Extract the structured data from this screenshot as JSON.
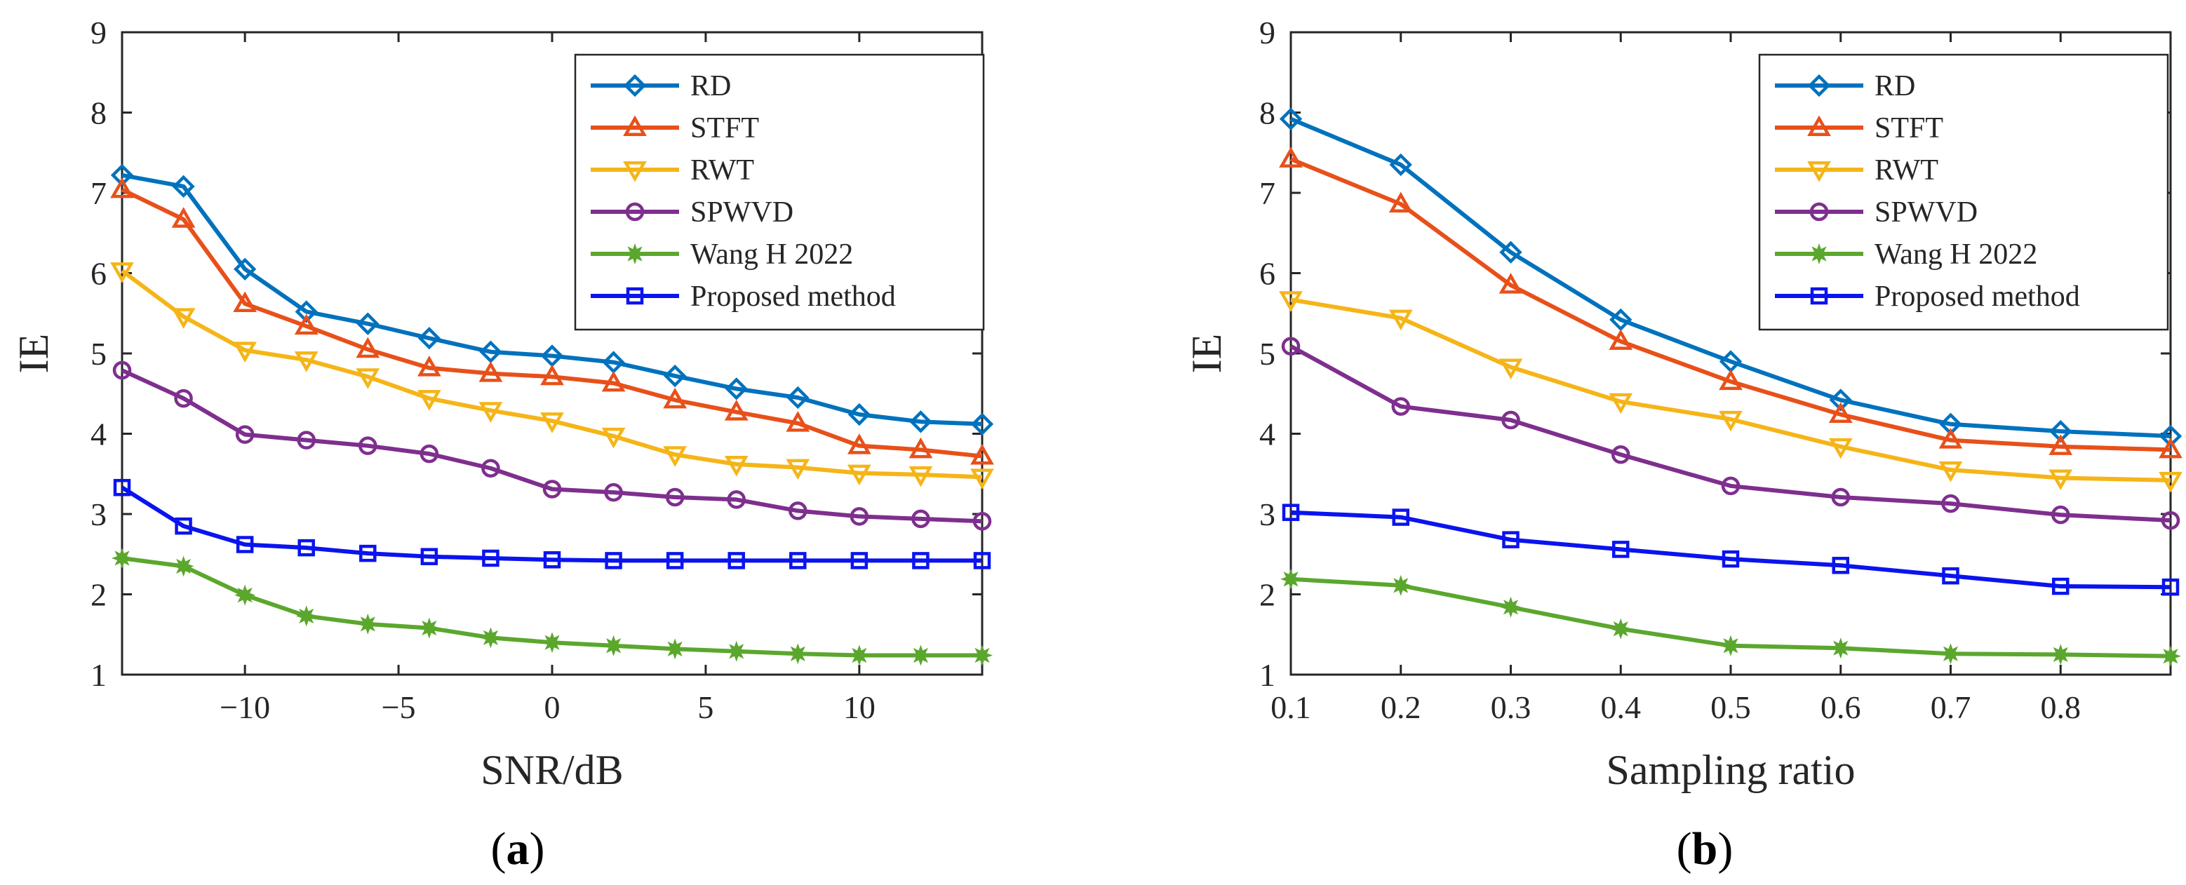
{
  "chart_data": [
    {
      "type": "line",
      "panel_label": "a",
      "xlabel": "SNR/dB",
      "ylabel": "IE",
      "xlim": [
        -14,
        14
      ],
      "ylim": [
        1,
        9
      ],
      "xticks": [
        -10,
        -5,
        0,
        5,
        10
      ],
      "xtick_labels": [
        "−10",
        "−5",
        "0",
        "5",
        "10"
      ],
      "yticks": [
        1,
        2,
        3,
        4,
        5,
        6,
        7,
        8,
        9
      ],
      "ytick_labels": [
        "1",
        "2",
        "3",
        "4",
        "5",
        "6",
        "7",
        "8",
        "9"
      ],
      "legend_position": "top-right",
      "x": [
        -14,
        -12,
        -10,
        -8,
        -6,
        -4,
        -2,
        0,
        2,
        4,
        6,
        8,
        10,
        12,
        14
      ],
      "series": [
        {
          "name": "RD",
          "color": "#0072BD",
          "marker": "diamond",
          "values": [
            7.22,
            7.08,
            6.05,
            5.52,
            5.37,
            5.19,
            5.02,
            4.97,
            4.89,
            4.72,
            4.56,
            4.45,
            4.24,
            4.15,
            4.12
          ]
        },
        {
          "name": "STFT",
          "color": "#E8501A",
          "marker": "triangle-up",
          "values": [
            7.04,
            6.67,
            5.62,
            5.34,
            5.05,
            4.82,
            4.75,
            4.71,
            4.63,
            4.42,
            4.27,
            4.13,
            3.85,
            3.8,
            3.72
          ]
        },
        {
          "name": "RWT",
          "color": "#F5B518",
          "marker": "triangle-down",
          "values": [
            6.03,
            5.46,
            5.04,
            4.92,
            4.71,
            4.44,
            4.29,
            4.16,
            3.97,
            3.74,
            3.62,
            3.58,
            3.51,
            3.49,
            3.46
          ]
        },
        {
          "name": "SPWVD",
          "color": "#7E2F8E",
          "marker": "circle",
          "values": [
            4.79,
            4.44,
            3.99,
            3.92,
            3.85,
            3.75,
            3.57,
            3.31,
            3.27,
            3.21,
            3.18,
            3.04,
            2.97,
            2.94,
            2.91
          ]
        },
        {
          "name": "Wang H 2022",
          "color": "#5BA72E",
          "marker": "star",
          "values": [
            2.45,
            2.35,
            1.99,
            1.73,
            1.63,
            1.58,
            1.46,
            1.4,
            1.36,
            1.32,
            1.29,
            1.26,
            1.24,
            1.24,
            1.24
          ]
        },
        {
          "name": "Proposed method",
          "color": "#0A14EE",
          "marker": "square",
          "values": [
            3.33,
            2.85,
            2.62,
            2.58,
            2.51,
            2.47,
            2.45,
            2.43,
            2.42,
            2.42,
            2.42,
            2.42,
            2.42,
            2.42,
            2.42
          ]
        }
      ]
    },
    {
      "type": "line",
      "panel_label": "b",
      "xlabel": "Sampling ratio",
      "ylabel": "IE",
      "xlim": [
        0.1,
        0.9
      ],
      "ylim": [
        1,
        9
      ],
      "xticks": [
        0.1,
        0.2,
        0.3,
        0.4,
        0.5,
        0.6,
        0.7,
        0.8
      ],
      "xtick_labels": [
        "0.1",
        "0.2",
        "0.3",
        "0.4",
        "0.5",
        "0.6",
        "0.7",
        "0.8"
      ],
      "yticks": [
        1,
        2,
        3,
        4,
        5,
        6,
        7,
        8,
        9
      ],
      "ytick_labels": [
        "1",
        "2",
        "3",
        "4",
        "5",
        "6",
        "7",
        "8",
        "9"
      ],
      "legend_position": "top-right",
      "x": [
        0.1,
        0.2,
        0.3,
        0.4,
        0.5,
        0.6,
        0.7,
        0.8,
        0.9
      ],
      "series": [
        {
          "name": "RD",
          "color": "#0072BD",
          "marker": "diamond",
          "values": [
            7.92,
            7.35,
            6.26,
            5.42,
            4.9,
            4.42,
            4.12,
            4.03,
            3.97
          ]
        },
        {
          "name": "STFT",
          "color": "#E8501A",
          "marker": "triangle-up",
          "values": [
            7.42,
            6.86,
            5.85,
            5.15,
            4.65,
            4.24,
            3.92,
            3.84,
            3.8
          ]
        },
        {
          "name": "RWT",
          "color": "#F5B518",
          "marker": "triangle-down",
          "values": [
            5.67,
            5.44,
            4.83,
            4.4,
            4.18,
            3.84,
            3.55,
            3.45,
            3.42
          ]
        },
        {
          "name": "SPWVD",
          "color": "#7E2F8E",
          "marker": "circle",
          "values": [
            5.09,
            4.34,
            4.17,
            3.74,
            3.35,
            3.21,
            3.13,
            2.99,
            2.92
          ]
        },
        {
          "name": "Wang H 2022",
          "color": "#5BA72E",
          "marker": "star",
          "values": [
            2.19,
            2.11,
            1.84,
            1.57,
            1.36,
            1.33,
            1.26,
            1.25,
            1.23
          ]
        },
        {
          "name": "Proposed method",
          "color": "#0A14EE",
          "marker": "square",
          "values": [
            3.02,
            2.96,
            2.68,
            2.56,
            2.44,
            2.36,
            2.23,
            2.1,
            2.09
          ]
        }
      ]
    }
  ]
}
